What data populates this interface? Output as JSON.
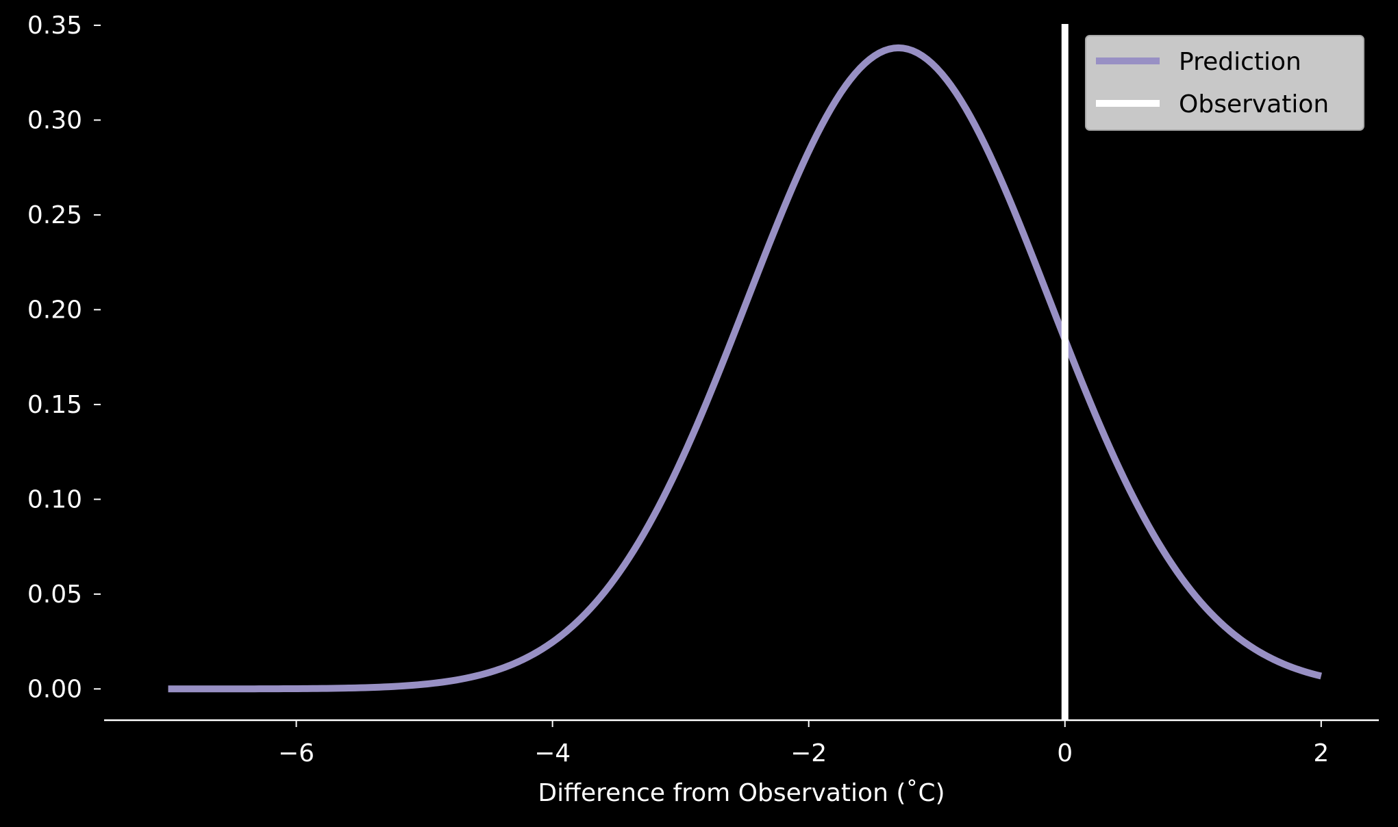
{
  "chart_data": {
    "type": "line",
    "title": "",
    "xlabel": "Difference from Observation ($^\\circ$C)",
    "xlabel_display": "Difference from Observation (˚C)",
    "ylabel": "",
    "xlim": [
      -7.5,
      2.45
    ],
    "ylim": [
      -0.0165,
      0.3525
    ],
    "xticks": [
      -6,
      -4,
      -2,
      0,
      2
    ],
    "xtick_labels": [
      "−6",
      "−4",
      "−2",
      "0",
      "2"
    ],
    "yticks": [
      0.0,
      0.05,
      0.1,
      0.15,
      0.2,
      0.25,
      0.3,
      0.35
    ],
    "ytick_labels": [
      "0.00",
      "0.05",
      "0.10",
      "0.15",
      "0.20",
      "0.25",
      "0.30",
      "0.35"
    ],
    "grid": false,
    "legend_placement": "top-right",
    "background": "#000000",
    "series": [
      {
        "name": "Prediction",
        "kind": "normal_pdf",
        "color": "#9890c4",
        "mean": -1.3,
        "std": 1.18,
        "x": [
          -7.0,
          -6.5,
          -6.0,
          -5.5,
          -5.0,
          -4.5,
          -4.0,
          -3.5,
          -3.0,
          -2.5,
          -2.0,
          -1.5,
          -1.3,
          -1.0,
          -0.5,
          0.0,
          0.5,
          1.0,
          1.5,
          2.0
        ],
        "y": [
          0.0,
          0.0001,
          0.0002,
          0.0006,
          0.0024,
          0.0087,
          0.0246,
          0.0592,
          0.1192,
          0.2001,
          0.2836,
          0.3335,
          0.3381,
          0.3273,
          0.268,
          0.1841,
          0.1061,
          0.0513,
          0.0209,
          0.0073
        ]
      },
      {
        "name": "Observation",
        "kind": "vline",
        "color": "#ffffff",
        "x": 0
      }
    ]
  }
}
